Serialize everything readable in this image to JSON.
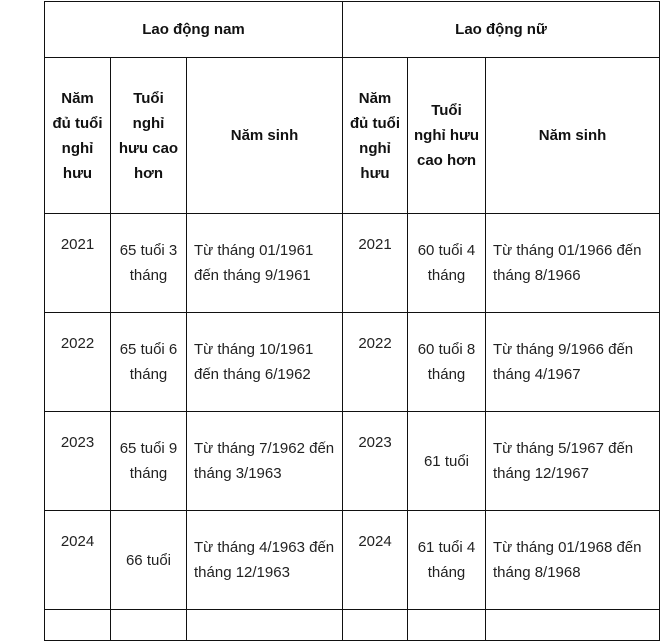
{
  "table": {
    "group_headers": [
      "Lao động nam",
      "Lao động nữ"
    ],
    "column_headers": {
      "year": "Năm đủ tuổi nghỉ hưu",
      "age": "Tuổi nghỉ hưu cao hơn",
      "birth": "Năm sinh"
    },
    "rows": [
      {
        "male": {
          "year": "2021",
          "age": "65 tuổi 3 tháng",
          "birth": "Từ tháng 01/1961 đến tháng 9/1961"
        },
        "female": {
          "year": "2021",
          "age": "60 tuổi 4 tháng",
          "birth": "Từ tháng 01/1966 đến tháng 8/1966"
        }
      },
      {
        "male": {
          "year": "2022",
          "age": "65 tuổi 6 tháng",
          "birth": "Từ tháng 10/1961 đến tháng 6/1962"
        },
        "female": {
          "year": "2022",
          "age": "60 tuổi 8 tháng",
          "birth": "Từ tháng 9/1966 đến tháng 4/1967"
        }
      },
      {
        "male": {
          "year": "2023",
          "age": "65 tuổi 9 tháng",
          "birth": "Từ tháng 7/1962 đến tháng 3/1963"
        },
        "female": {
          "year": "2023",
          "age": "61 tuổi",
          "birth": "Từ tháng 5/1967 đến tháng 12/1967"
        }
      },
      {
        "male": {
          "year": "2024",
          "age": "66 tuổi",
          "birth": "Từ tháng 4/1963 đến tháng 12/1963"
        },
        "female": {
          "year": "2024",
          "age": "61 tuổi 4 tháng",
          "birth": "Từ tháng 01/1968 đến tháng 8/1968"
        }
      }
    ]
  }
}
